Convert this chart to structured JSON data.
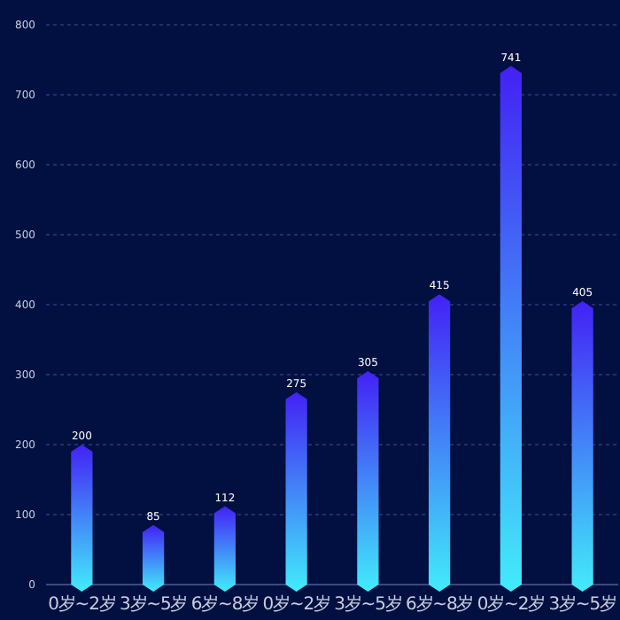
{
  "chart_data": {
    "type": "bar",
    "categories": [
      "0岁~2岁",
      "3岁~5岁",
      "6岁~8岁",
      "0岁~2岁",
      "3岁~5岁",
      "6岁~8岁",
      "0岁~2岁",
      "3岁~5岁"
    ],
    "values": [
      200,
      85,
      112,
      275,
      305,
      415,
      741,
      405
    ],
    "color": "#4321f5",
    "ylim": [
      0,
      800
    ],
    "yticks": [
      0,
      100,
      200,
      300,
      400,
      500,
      600,
      700,
      800
    ],
    "grid": "y",
    "data_labels": true
  }
}
